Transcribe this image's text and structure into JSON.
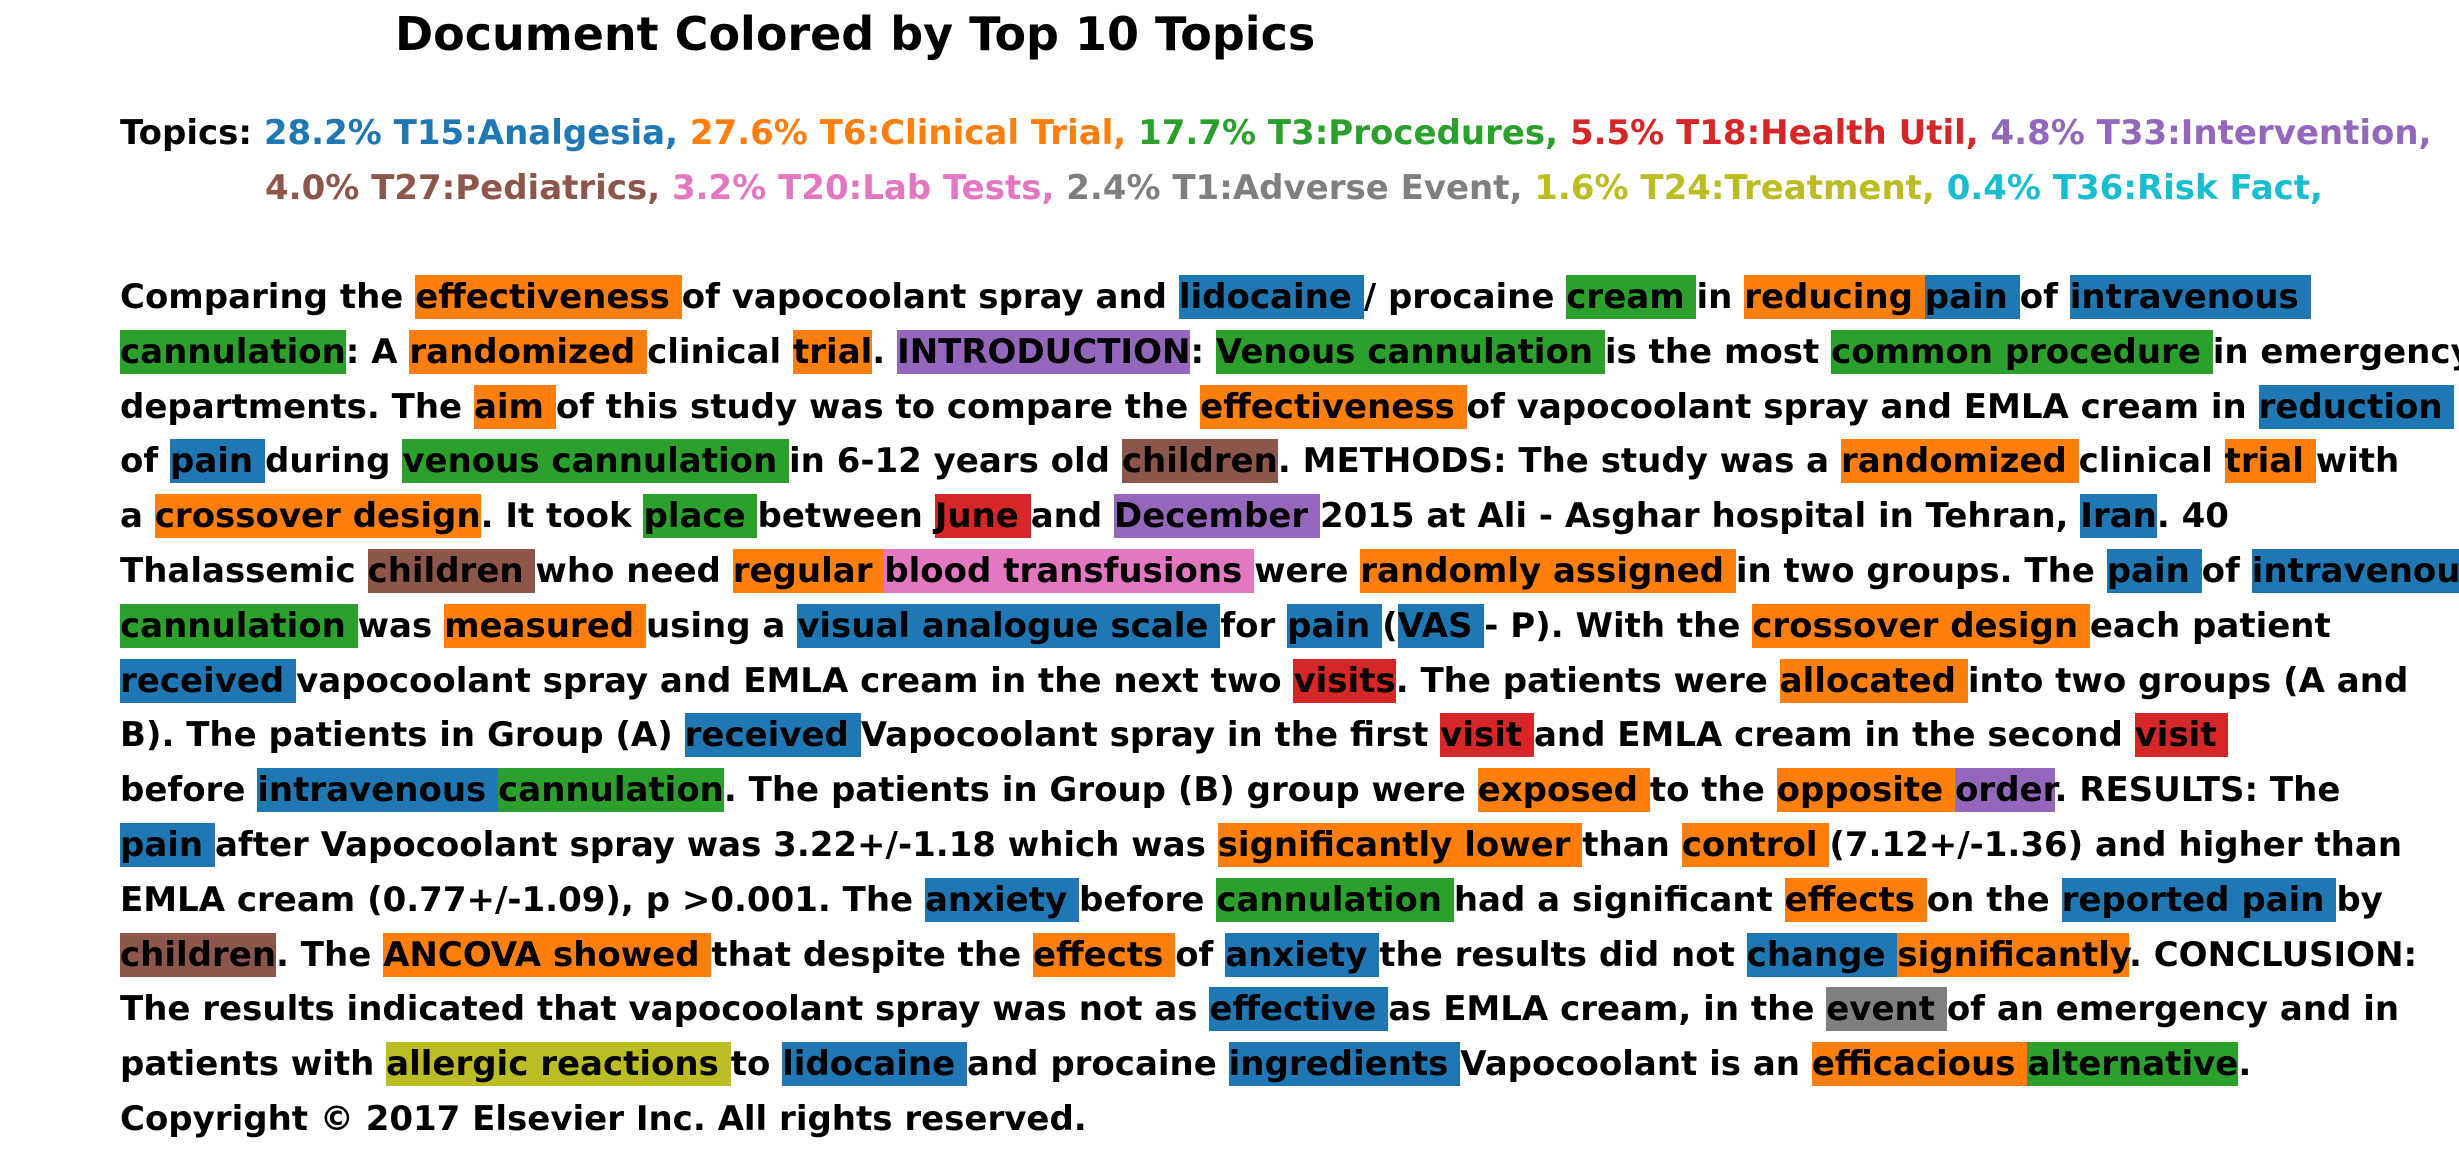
{
  "title": "Document Colored by Top 10 Topics",
  "topics_label": "Topics:",
  "topics": [
    {
      "text": "28.2% T15:Analgesia,",
      "color": "#1f77b4"
    },
    {
      "text": "27.6% T6:Clinical Trial,",
      "color": "#ff7f0e"
    },
    {
      "text": "17.7% T3:Procedures,",
      "color": "#2ca02c"
    },
    {
      "text": "5.5% T18:Health Util,",
      "color": "#d62728"
    },
    {
      "text": "4.8% T33:Intervention,",
      "color": "#9467bd"
    },
    {
      "text": "4.0% T27:Pediatrics,",
      "color": "#8c564b"
    },
    {
      "text": "3.2% T20:Lab Tests,",
      "color": "#e377c2"
    },
    {
      "text": "2.4% T1:Adverse Event,",
      "color": "#7f7f7f"
    },
    {
      "text": "1.6% T24:Treatment,",
      "color": "#bcbd22"
    },
    {
      "text": "0.4% T36:Risk Fact,",
      "color": "#17becf"
    }
  ],
  "lines": [
    [
      [
        "Comparing the ",
        null
      ],
      [
        "effectiveness ",
        "#ff7f0e"
      ],
      [
        "of vapocoolant spray and ",
        null
      ],
      [
        "lidocaine ",
        "#1f77b4"
      ],
      [
        "/ procaine ",
        null
      ],
      [
        "cream ",
        "#2ca02c"
      ],
      [
        "in ",
        null
      ],
      [
        "reducing ",
        "#ff7f0e"
      ],
      [
        "pain ",
        "#1f77b4"
      ],
      [
        "of ",
        null
      ],
      [
        "intravenous ",
        "#1f77b4"
      ]
    ],
    [
      [
        "cannulation",
        "#2ca02c"
      ],
      [
        ": A ",
        null
      ],
      [
        "randomized ",
        "#ff7f0e"
      ],
      [
        "clinical ",
        null
      ],
      [
        "trial",
        "#ff7f0e"
      ],
      [
        ". ",
        null
      ],
      [
        "INTRODUCTION",
        "#9467bd"
      ],
      [
        ": ",
        null
      ],
      [
        "Venous cannulation ",
        "#2ca02c"
      ],
      [
        "is the most ",
        null
      ],
      [
        "common procedure ",
        "#2ca02c"
      ],
      [
        "in emergency",
        null
      ]
    ],
    [
      [
        "departments. The ",
        null
      ],
      [
        "aim ",
        "#ff7f0e"
      ],
      [
        "of this study was to compare the ",
        null
      ],
      [
        "effectiveness ",
        "#ff7f0e"
      ],
      [
        "of vapocoolant spray and EMLA cream in ",
        null
      ],
      [
        "reduction ",
        "#1f77b4"
      ]
    ],
    [
      [
        "of ",
        null
      ],
      [
        "pain ",
        "#1f77b4"
      ],
      [
        "during ",
        null
      ],
      [
        "venous cannulation ",
        "#2ca02c"
      ],
      [
        "in 6-12 years old ",
        null
      ],
      [
        "children",
        "#8c564b"
      ],
      [
        ". METHODS: The study was a ",
        null
      ],
      [
        "randomized ",
        "#ff7f0e"
      ],
      [
        "clinical ",
        null
      ],
      [
        "trial ",
        "#ff7f0e"
      ],
      [
        "with",
        null
      ]
    ],
    [
      [
        "a ",
        null
      ],
      [
        "crossover design",
        "#ff7f0e"
      ],
      [
        ". It took ",
        null
      ],
      [
        "place ",
        "#2ca02c"
      ],
      [
        "between ",
        null
      ],
      [
        "June ",
        "#d62728"
      ],
      [
        "and ",
        null
      ],
      [
        "December ",
        "#9467bd"
      ],
      [
        "2015 at Ali - Asghar hospital in Tehran, ",
        null
      ],
      [
        "Iran",
        "#1f77b4"
      ],
      [
        ". 40",
        null
      ]
    ],
    [
      [
        "Thalassemic ",
        null
      ],
      [
        "children ",
        "#8c564b"
      ],
      [
        "who need ",
        null
      ],
      [
        "regular ",
        "#ff7f0e"
      ],
      [
        "blood transfusions ",
        "#e377c2"
      ],
      [
        "were ",
        null
      ],
      [
        "randomly assigned ",
        "#ff7f0e"
      ],
      [
        "in two groups. The ",
        null
      ],
      [
        "pain ",
        "#1f77b4"
      ],
      [
        "of ",
        null
      ],
      [
        "intravenous ",
        "#1f77b4"
      ]
    ],
    [
      [
        "cannulation ",
        "#2ca02c"
      ],
      [
        "was ",
        null
      ],
      [
        "measured ",
        "#ff7f0e"
      ],
      [
        "using a ",
        null
      ],
      [
        "visual analogue scale ",
        "#1f77b4"
      ],
      [
        "for ",
        null
      ],
      [
        "pain ",
        "#1f77b4"
      ],
      [
        "(",
        null
      ],
      [
        "VAS ",
        "#1f77b4"
      ],
      [
        "- P). With the ",
        null
      ],
      [
        "crossover design ",
        "#ff7f0e"
      ],
      [
        "each patient",
        null
      ]
    ],
    [
      [
        "received ",
        "#1f77b4"
      ],
      [
        "vapocoolant spray and EMLA cream in the next two ",
        null
      ],
      [
        "visits",
        "#d62728"
      ],
      [
        ". The patients were ",
        null
      ],
      [
        "allocated ",
        "#ff7f0e"
      ],
      [
        "into two groups (A and",
        null
      ]
    ],
    [
      [
        "B). The patients in Group (A) ",
        null
      ],
      [
        "received ",
        "#1f77b4"
      ],
      [
        "Vapocoolant spray in the first ",
        null
      ],
      [
        "visit ",
        "#d62728"
      ],
      [
        "and EMLA cream in the second ",
        null
      ],
      [
        "visit ",
        "#d62728"
      ]
    ],
    [
      [
        "before ",
        null
      ],
      [
        "intravenous ",
        "#1f77b4"
      ],
      [
        "cannulation",
        "#2ca02c"
      ],
      [
        ". The patients in Group (B) group were ",
        null
      ],
      [
        "exposed ",
        "#ff7f0e"
      ],
      [
        "to the ",
        null
      ],
      [
        "opposite ",
        "#ff7f0e"
      ],
      [
        "order",
        "#9467bd"
      ],
      [
        ". RESULTS: The",
        null
      ]
    ],
    [
      [
        "pain ",
        "#1f77b4"
      ],
      [
        "after Vapocoolant spray was 3.22+/-1.18 which was ",
        null
      ],
      [
        "significantly lower ",
        "#ff7f0e"
      ],
      [
        "than ",
        null
      ],
      [
        "control ",
        "#ff7f0e"
      ],
      [
        "(7.12+/-1.36) and higher than",
        null
      ]
    ],
    [
      [
        "EMLA cream (0.77+/-1.09), p >0.001. The ",
        null
      ],
      [
        "anxiety ",
        "#1f77b4"
      ],
      [
        "before ",
        null
      ],
      [
        "cannulation ",
        "#2ca02c"
      ],
      [
        "had a significant ",
        null
      ],
      [
        "effects ",
        "#ff7f0e"
      ],
      [
        "on the ",
        null
      ],
      [
        "reported pain ",
        "#1f77b4"
      ],
      [
        "by",
        null
      ]
    ],
    [
      [
        "children",
        "#8c564b"
      ],
      [
        ". The ",
        null
      ],
      [
        "ANCOVA showed ",
        "#ff7f0e"
      ],
      [
        "that despite the ",
        null
      ],
      [
        "effects ",
        "#ff7f0e"
      ],
      [
        "of ",
        null
      ],
      [
        "anxiety ",
        "#1f77b4"
      ],
      [
        "the results did not ",
        null
      ],
      [
        "change ",
        "#1f77b4"
      ],
      [
        "significantly",
        "#ff7f0e"
      ],
      [
        ". CONCLUSION:",
        null
      ]
    ],
    [
      [
        "The results indicated that vapocoolant spray was not as ",
        null
      ],
      [
        "effective ",
        "#1f77b4"
      ],
      [
        "as EMLA cream, in the ",
        null
      ],
      [
        "event ",
        "#7f7f7f"
      ],
      [
        "of an emergency and in",
        null
      ]
    ],
    [
      [
        "patients with ",
        null
      ],
      [
        "allergic reactions ",
        "#bcbd22"
      ],
      [
        "to ",
        null
      ],
      [
        "lidocaine ",
        "#1f77b4"
      ],
      [
        "and procaine ",
        null
      ],
      [
        "ingredients ",
        "#1f77b4"
      ],
      [
        "Vapocoolant is an ",
        null
      ],
      [
        "efficacious ",
        "#ff7f0e"
      ],
      [
        "alternative",
        "#2ca02c"
      ],
      [
        ".",
        null
      ]
    ],
    [
      [
        "Copyright © 2017 Elsevier Inc. All rights reserved.",
        null
      ]
    ]
  ]
}
